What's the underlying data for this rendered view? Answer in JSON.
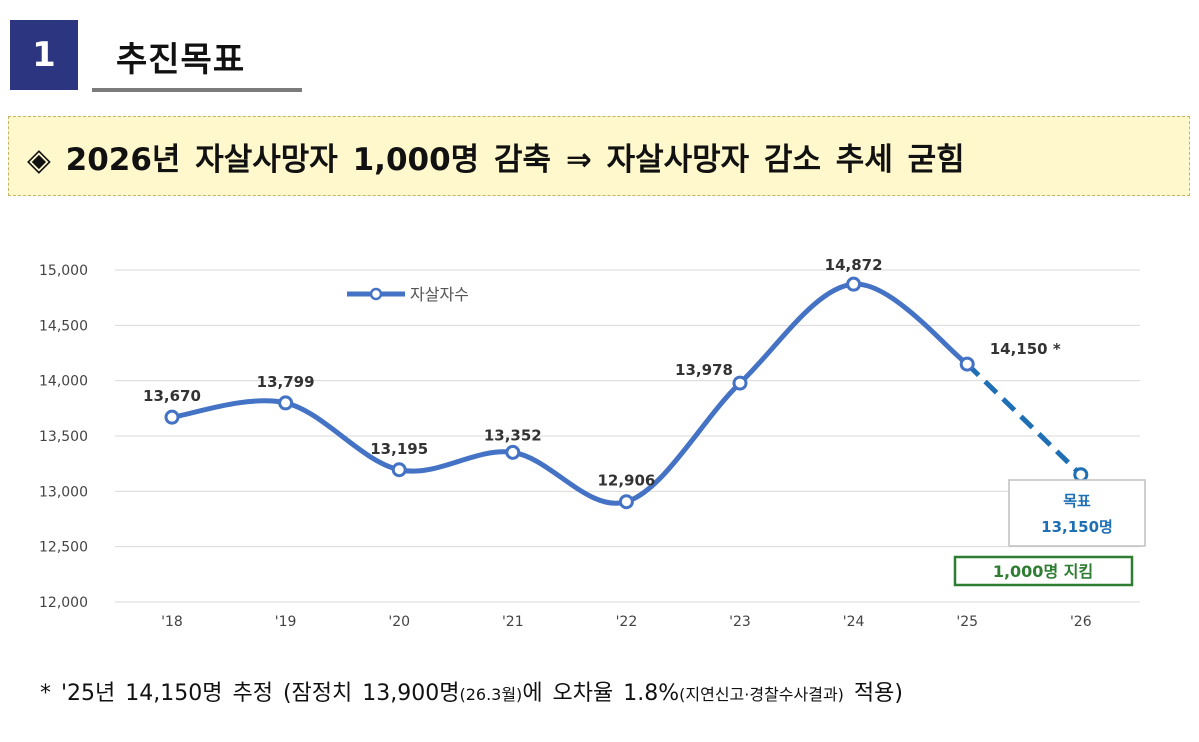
{
  "header": {
    "number": "1",
    "title": "추진목표"
  },
  "goal": {
    "text": "◈ 2026년 자살사망자 1,000명 감축 ⇒ 자살사망자 감소 추세 굳힘"
  },
  "chart_data": {
    "type": "line",
    "categories": [
      "'18",
      "'19",
      "'20",
      "'21",
      "'22",
      "'23",
      "'24",
      "'25",
      "'26"
    ],
    "series": [
      {
        "name": "자살자수",
        "values": [
          13670,
          13799,
          13195,
          13352,
          12906,
          13978,
          14872,
          14150,
          13150
        ],
        "color": "#4472c4"
      }
    ],
    "data_labels": [
      "13,670",
      "13,799",
      "13,195",
      "13,352",
      "12,906",
      "13,978",
      "14,872",
      "14,150 *",
      ""
    ],
    "projection": {
      "from_category": "'25",
      "to_category": "'26",
      "style": "dashed",
      "color": "#1f6fb5"
    },
    "ylim": [
      12000,
      15000
    ],
    "y_ticks": [
      "12,000",
      "12,500",
      "13,000",
      "13,500",
      "14,000",
      "14,500",
      "15,000"
    ],
    "y_tick_values": [
      12000,
      12500,
      13000,
      13500,
      14000,
      14500,
      15000
    ],
    "grid": true,
    "legend_position": "top-left",
    "target_box": {
      "label": "목표",
      "value": "13,150명",
      "color": "#1f6fb5"
    },
    "reduction_box": {
      "text": "1,000명 지킴",
      "color": "#2e7d32"
    }
  },
  "footnote": {
    "part1": "* '25년 14,150명 추정 (잠정치 13,900명",
    "part2": "(26.3월)",
    "part3": "에 오차율 1.8%",
    "part4": "(지연신고·경찰수사결과)",
    "part5": " 적용)"
  }
}
